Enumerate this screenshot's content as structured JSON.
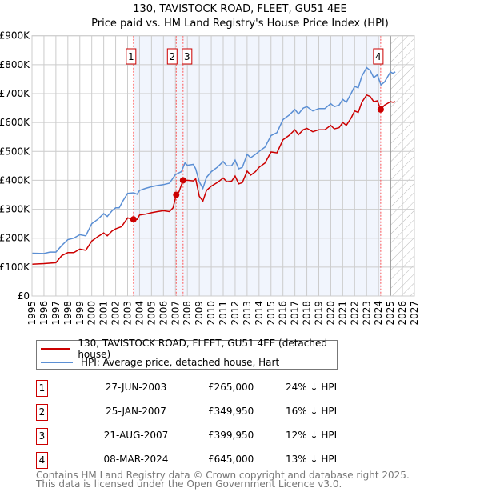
{
  "chart_data": {
    "type": "line",
    "title": "130, TAVISTOCK ROAD, FLEET, GU51 4EE",
    "subtitle": "Price paid vs. HM Land Registry's House Price Index (HPI)",
    "xlim": [
      1995,
      2027
    ],
    "ylim": [
      0,
      900000
    ],
    "xticks": [
      "1995",
      "1996",
      "1997",
      "1998",
      "1999",
      "2000",
      "2001",
      "2002",
      "2003",
      "2004",
      "2005",
      "2006",
      "2007",
      "2008",
      "2009",
      "2010",
      "2011",
      "2012",
      "2013",
      "2014",
      "2015",
      "2016",
      "2017",
      "2018",
      "2019",
      "2020",
      "2021",
      "2022",
      "2023",
      "2024",
      "2025",
      "2026",
      "2027"
    ],
    "yticks": [
      "£0",
      "£100K",
      "£200K",
      "£300K",
      "£400K",
      "£500K",
      "£600K",
      "£700K",
      "£800K",
      "£900K"
    ],
    "grid": true,
    "shaded_range": [
      2003.49,
      2024.18
    ],
    "forecast_start": 2025.0,
    "series": [
      {
        "name": "130, TAVISTOCK ROAD, FLEET, GU51 4EE (detached house)",
        "color": "#cc0000",
        "x": [
          1995,
          1996,
          1997,
          1997.5,
          1998,
          1998.5,
          1999,
          1999.5,
          2000,
          2000.5,
          2001,
          2001.3,
          2001.7,
          2002,
          2002.5,
          2003,
          2003.49,
          2003.8,
          2004,
          2004.5,
          2005,
          2005.5,
          2006,
          2006.5,
          2006.8,
          2007.07,
          2007.3,
          2007.64,
          2008,
          2008.5,
          2008.7,
          2009,
          2009.3,
          2009.6,
          2010,
          2010.5,
          2011,
          2011.3,
          2011.7,
          2012,
          2012.3,
          2012.6,
          2013,
          2013.3,
          2013.7,
          2014,
          2014.5,
          2015,
          2015.5,
          2016,
          2016.5,
          2017,
          2017.3,
          2017.7,
          2018,
          2018.5,
          2019,
          2019.5,
          2020,
          2020.3,
          2020.7,
          2021,
          2021.3,
          2021.7,
          2022,
          2022.3,
          2022.6,
          2023,
          2023.3,
          2023.6,
          2023.9,
          2024.18,
          2024.5,
          2025,
          2025.2,
          2025.4
        ],
        "values": [
          110,
          112,
          115,
          140,
          150,
          150,
          162,
          158,
          190,
          205,
          218,
          208,
          225,
          232,
          240,
          270,
          265,
          265,
          280,
          283,
          288,
          292,
          295,
          292,
          305,
          350,
          360,
          400,
          400,
          398,
          405,
          345,
          328,
          365,
          380,
          392,
          408,
          395,
          397,
          415,
          388,
          392,
          432,
          418,
          430,
          445,
          460,
          498,
          495,
          540,
          555,
          575,
          558,
          575,
          580,
          568,
          575,
          575,
          590,
          578,
          582,
          600,
          590,
          615,
          640,
          635,
          670,
          695,
          690,
          672,
          675,
          645,
          660,
          672,
          670,
          672
        ]
      },
      {
        "name": "HPI: Average price, detached house, Hart",
        "color": "#5b8fd4",
        "x": [
          1995,
          1996,
          1996.5,
          1997,
          1997.5,
          1998,
          1998.5,
          1999,
          1999.5,
          2000,
          2000.5,
          2001,
          2001.3,
          2001.7,
          2002,
          2002.3,
          2002.6,
          2003,
          2003.5,
          2003.8,
          2004,
          2004.5,
          2005,
          2005.5,
          2006,
          2006.5,
          2007,
          2007.5,
          2007.8,
          2008,
          2008.5,
          2008.7,
          2009,
          2009.3,
          2009.6,
          2010,
          2010.5,
          2011,
          2011.3,
          2011.7,
          2012,
          2012.3,
          2012.6,
          2013,
          2013.3,
          2013.7,
          2014,
          2014.5,
          2015,
          2015.5,
          2016,
          2016.5,
          2017,
          2017.3,
          2017.7,
          2018,
          2018.5,
          2019,
          2019.5,
          2020,
          2020.3,
          2020.7,
          2021,
          2021.3,
          2021.7,
          2022,
          2022.3,
          2022.6,
          2023,
          2023.3,
          2023.6,
          2023.9,
          2024.2,
          2024.5,
          2025,
          2025.2,
          2025.4
        ],
        "values": [
          148,
          147,
          152,
          152,
          175,
          195,
          200,
          212,
          208,
          250,
          265,
          285,
          275,
          295,
          305,
          305,
          328,
          355,
          357,
          352,
          365,
          372,
          378,
          382,
          385,
          390,
          420,
          430,
          460,
          452,
          455,
          440,
          395,
          372,
          410,
          430,
          445,
          465,
          450,
          450,
          470,
          440,
          445,
          490,
          478,
          490,
          500,
          515,
          555,
          565,
          610,
          625,
          645,
          630,
          650,
          655,
          640,
          648,
          648,
          665,
          655,
          660,
          680,
          670,
          700,
          725,
          720,
          760,
          790,
          780,
          755,
          765,
          730,
          740,
          775,
          770,
          775
        ]
      }
    ],
    "value_unit": "thousands GBP",
    "annotations": [
      {
        "label": "1",
        "x": 2003.49,
        "y": 265
      },
      {
        "label": "2",
        "x": 2007.07,
        "y": 349.95
      },
      {
        "label": "3",
        "x": 2007.64,
        "y": 399.95
      },
      {
        "label": "4",
        "x": 2024.18,
        "y": 645
      }
    ]
  },
  "legend": [
    {
      "label": "130, TAVISTOCK ROAD, FLEET, GU51 4EE (detached house)",
      "color": "#cc0000"
    },
    {
      "label": "HPI: Average price, detached house, Hart",
      "color": "#5b8fd4"
    }
  ],
  "transactions": [
    {
      "num": "1",
      "date": "27-JUN-2003",
      "price": "£265,000",
      "hpi": "24% ↓ HPI"
    },
    {
      "num": "2",
      "date": "25-JAN-2007",
      "price": "£349,950",
      "hpi": "16% ↓ HPI"
    },
    {
      "num": "3",
      "date": "21-AUG-2007",
      "price": "£399,950",
      "hpi": "12% ↓ HPI"
    },
    {
      "num": "4",
      "date": "08-MAR-2024",
      "price": "£645,000",
      "hpi": "13% ↓ HPI"
    }
  ],
  "footer": {
    "line1": "Contains HM Land Registry data © Crown copyright and database right 2025.",
    "line2": "This data is licensed under the Open Government Licence v3.0."
  }
}
